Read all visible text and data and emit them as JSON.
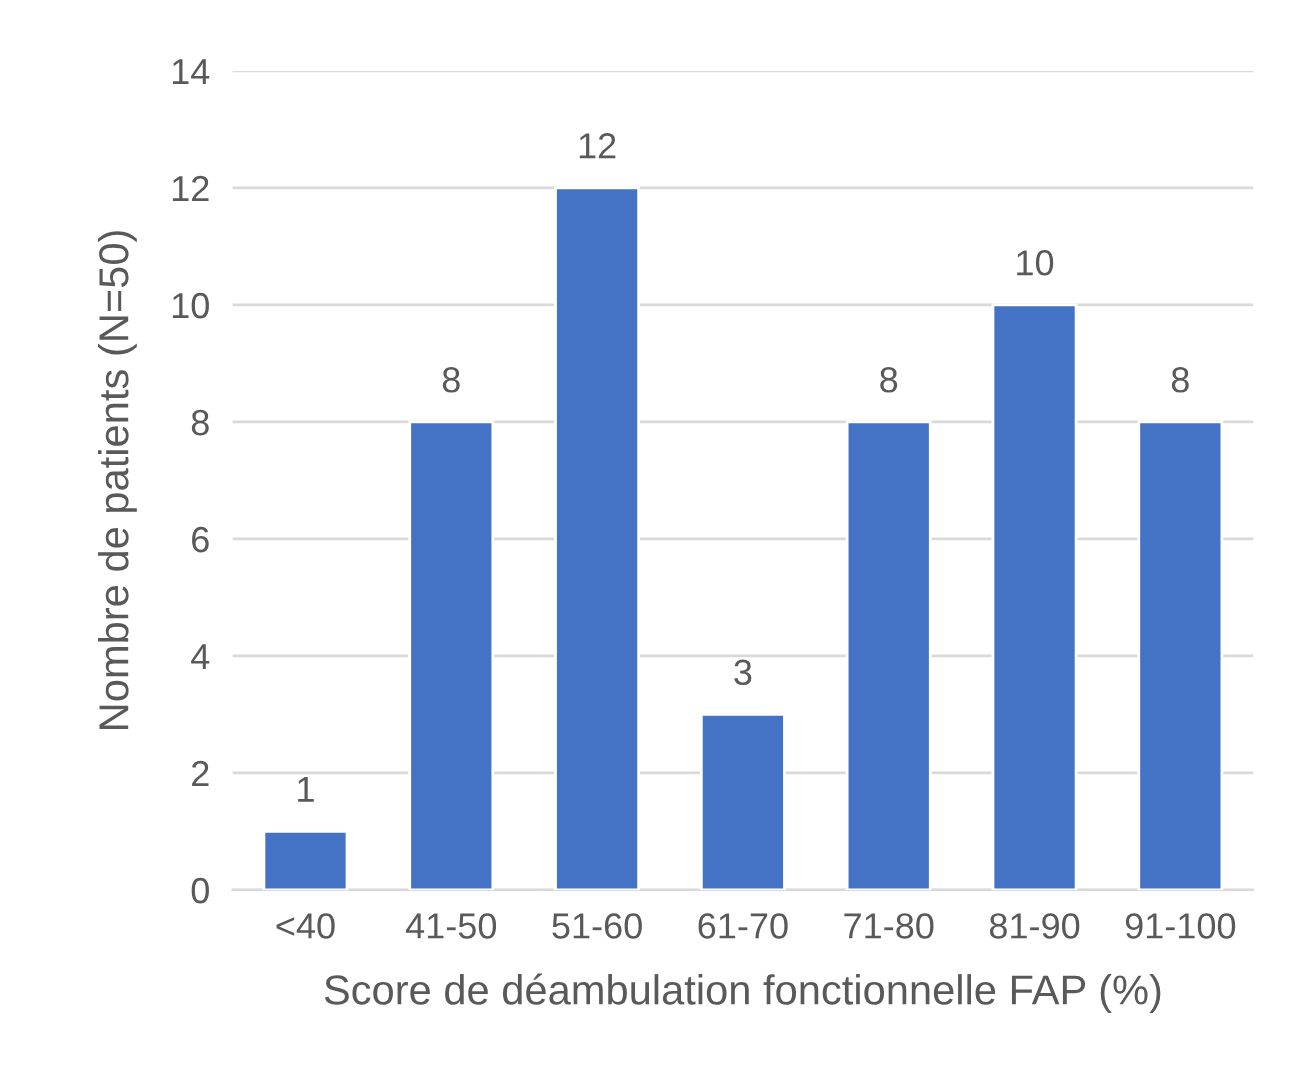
{
  "chart_data": {
    "type": "bar",
    "xlabel": "Score de déambulation fonctionnelle FAP (%)",
    "ylabel": "Nombre de patients (N=50)",
    "categories": [
      "<40",
      "41-50",
      "51-60",
      "61-70",
      "71-80",
      "81-90",
      "91-100"
    ],
    "values": [
      1,
      8,
      12,
      3,
      8,
      10,
      8
    ],
    "color": "#4472c4",
    "ylim": [
      0,
      14
    ],
    "yticks": [
      0,
      2,
      4,
      6,
      8,
      10,
      12,
      14
    ],
    "grid": "y",
    "data_labels": true
  }
}
